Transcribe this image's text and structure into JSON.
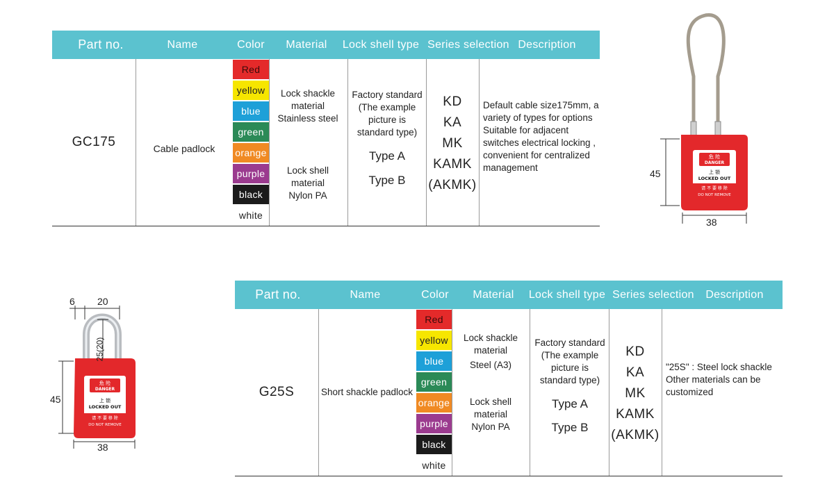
{
  "headers": {
    "part_no": "Part no.",
    "name": "Name",
    "color": "Color",
    "material": "Material",
    "shell": "Lock shell type",
    "series": "Series selection",
    "description": "Description"
  },
  "products": [
    {
      "part_no": "GC175",
      "name": "Cable padlock",
      "colors": [
        {
          "label": "Red",
          "hex": "#e42a2a"
        },
        {
          "label": "yellow",
          "hex": "#f6e600"
        },
        {
          "label": "blue",
          "hex": "#1ea0d8"
        },
        {
          "label": "green",
          "hex": "#2b8a57"
        },
        {
          "label": "orange",
          "hex": "#f08a23"
        },
        {
          "label": "purple",
          "hex": "#9b3b8f"
        },
        {
          "label": "black",
          "hex": "#1b1b1b"
        },
        {
          "label": "white",
          "hex": "#ffffff"
        }
      ],
      "material_shackle": [
        "Lock shackle",
        "material",
        "Stainless steel"
      ],
      "material_shell": [
        "Lock shell",
        "material",
        "Nylon PA"
      ],
      "shell_std": [
        "Factory standard",
        "(The example",
        "picture is",
        "standard type)"
      ],
      "types": [
        "Type A",
        "Type B"
      ],
      "series": [
        "KD",
        "KA",
        "MK",
        "KAMK",
        "(AKMK)"
      ],
      "description": [
        "Default cable size175mm, a",
        "variety of types for options",
        "Suitable for adjacent",
        "switches electrical locking ,",
        "convenient for centralized",
        "management"
      ]
    },
    {
      "part_no": "G25S",
      "name": "Short shackle padlock",
      "colors": [
        {
          "label": "Red",
          "hex": "#e42a2a"
        },
        {
          "label": "yellow",
          "hex": "#f6e600"
        },
        {
          "label": "blue",
          "hex": "#1ea0d8"
        },
        {
          "label": "green",
          "hex": "#2b8a57"
        },
        {
          "label": "orange",
          "hex": "#f08a23"
        },
        {
          "label": "purple",
          "hex": "#9b3b8f"
        },
        {
          "label": "black",
          "hex": "#1b1b1b"
        },
        {
          "label": "white",
          "hex": "#ffffff"
        }
      ],
      "material_shackle": [
        "Lock shackle",
        "material",
        "Steel (A3)"
      ],
      "material_shell": [
        "Lock shell",
        "material",
        "Nylon PA"
      ],
      "shell_std": [
        "Factory standard",
        "(The example",
        "picture is",
        "standard type)"
      ],
      "types": [
        "Type A",
        "Type B"
      ],
      "series": [
        "KD",
        "KA",
        "MK",
        "KAMK",
        "(AKMK)"
      ],
      "description": [
        "\"25S\" : Steel lock shackle",
        "Other materials can be",
        "customized"
      ]
    }
  ],
  "padlock_labels": {
    "cn_top": "危 险",
    "danger": "DANGER",
    "cn_mid": "上 锁",
    "locked_out": "LOCKED OUT",
    "cn_bottom": "请 不 要 移 除",
    "do_not_remove": "DO NOT REMOVE"
  },
  "dims_cable": {
    "height": "45",
    "width": "38"
  },
  "dims_short": {
    "a": "6",
    "b": "20",
    "shackle": "25(20)",
    "height": "45",
    "width": "38"
  },
  "brand_colors": {
    "header": "#5bc2cf",
    "lock_red": "#e3282b"
  }
}
